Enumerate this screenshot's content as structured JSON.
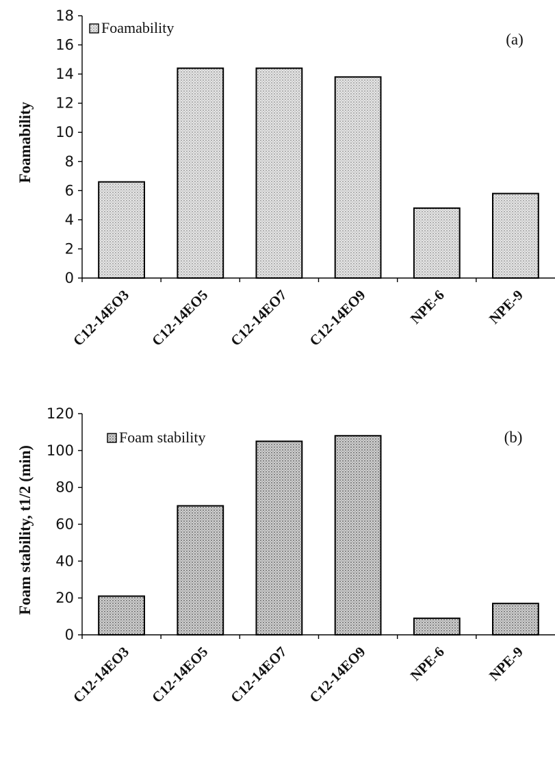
{
  "chart_data": [
    {
      "type": "bar",
      "panel_tag": "(a)",
      "categories": [
        "C12-14EO3",
        "C12-14EO5",
        "C12-14EO7",
        "C12-14EO9",
        "NPE-6",
        "NPE-9"
      ],
      "series": [
        {
          "name": "Foamability",
          "values": [
            6.6,
            14.4,
            14.4,
            13.8,
            4.8,
            5.8
          ]
        }
      ],
      "ylabel": "Foamability",
      "xlabel": "",
      "ylim": [
        0,
        18
      ],
      "yticks": [
        0,
        2,
        4,
        6,
        8,
        10,
        12,
        14,
        16,
        18
      ],
      "grid": false,
      "legend": "top-left",
      "fill_color": "#d4d4d4"
    },
    {
      "type": "bar",
      "panel_tag": "(b)",
      "categories": [
        "C12-14EO3",
        "C12-14EO5",
        "C12-14EO7",
        "C12-14EO9",
        "NPE-6",
        "NPE-9"
      ],
      "series": [
        {
          "name": "Foam stability",
          "values": [
            21,
            70,
            105,
            108,
            9,
            17
          ]
        }
      ],
      "ylabel": "Foam stability, t1/2 (min)",
      "xlabel": "",
      "ylim": [
        0,
        120
      ],
      "yticks": [
        0,
        20,
        40,
        60,
        80,
        100,
        120
      ],
      "grid": false,
      "legend": "top-left",
      "fill_color": "#b8b8b8"
    }
  ]
}
